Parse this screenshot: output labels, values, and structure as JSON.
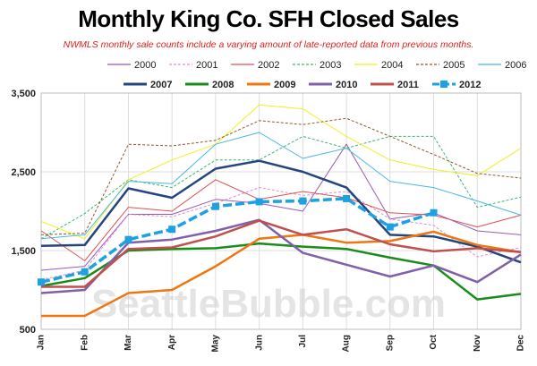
{
  "chart_data": {
    "type": "line",
    "title": "Monthly King Co. SFH Closed Sales",
    "subtitle": "NWMLS monthly sale counts include a varying amount of late-reported  data from previous months.",
    "watermark": "SeattleBubble.com",
    "categories": [
      "Jan",
      "Feb",
      "Mar",
      "Apr",
      "May",
      "Jun",
      "Jul",
      "Aug",
      "Sep",
      "Oct",
      "Nov",
      "Dec"
    ],
    "ylim": [
      500,
      3500
    ],
    "yticks": [
      "500",
      "1,500",
      "2,500",
      "3,500"
    ],
    "ytick_values": [
      500,
      1500,
      2500,
      3500
    ],
    "grid": true,
    "legend_position": "top",
    "series": [
      {
        "name": "2000",
        "color": "#9b59b6",
        "style": "thin",
        "values": [
          1250,
          1300,
          1960,
          1960,
          2150,
          2100,
          2000,
          2850,
          1900,
          1980,
          1750,
          1700
        ]
      },
      {
        "name": "2001",
        "color": "#d98fd9",
        "style": "thin-dash",
        "values": [
          1130,
          1250,
          1960,
          1930,
          2100,
          2300,
          2200,
          2250,
          1900,
          1820,
          1420,
          1540
        ]
      },
      {
        "name": "2002",
        "color": "#e05050",
        "style": "thin",
        "values": [
          1750,
          1370,
          2050,
          2000,
          2400,
          2150,
          2250,
          2170,
          1980,
          1950,
          1800,
          1950
        ]
      },
      {
        "name": "2003",
        "color": "#3cb371",
        "style": "thin-dash",
        "values": [
          1650,
          1970,
          2400,
          2300,
          2650,
          2650,
          2950,
          2800,
          2950,
          2950,
          2050,
          2180
        ]
      },
      {
        "name": "2004",
        "color": "#f0f020",
        "style": "thin",
        "values": [
          1870,
          1650,
          2400,
          2650,
          2850,
          3350,
          3300,
          2950,
          2650,
          2530,
          2450,
          2800
        ]
      },
      {
        "name": "2005",
        "color": "#8b5a2b",
        "style": "thin-dash",
        "values": [
          1700,
          1720,
          2850,
          2830,
          2900,
          3150,
          3100,
          3180,
          2950,
          2720,
          2480,
          2420
        ]
      },
      {
        "name": "2006",
        "color": "#48b8e0",
        "style": "thin",
        "values": [
          1650,
          1700,
          2380,
          2350,
          2850,
          3000,
          2670,
          2800,
          2380,
          2300,
          2130,
          1950
        ]
      },
      {
        "name": "2007",
        "color": "#24457e",
        "style": "bold",
        "values": [
          1560,
          1570,
          2290,
          2170,
          2540,
          2640,
          2500,
          2300,
          1700,
          1680,
          1550,
          1350
        ]
      },
      {
        "name": "2008",
        "color": "#1a8c1a",
        "style": "bold",
        "values": [
          1050,
          1150,
          1500,
          1520,
          1530,
          1590,
          1550,
          1520,
          1410,
          1310,
          880,
          950
        ]
      },
      {
        "name": "2009",
        "color": "#ee7711",
        "style": "bold",
        "values": [
          670,
          670,
          960,
          1000,
          1300,
          1650,
          1700,
          1600,
          1620,
          1740,
          1570,
          1480
        ]
      },
      {
        "name": "2010",
        "color": "#8060a8",
        "style": "bold",
        "values": [
          960,
          1000,
          1600,
          1640,
          1750,
          1890,
          1470,
          1320,
          1170,
          1310,
          1100,
          1450
        ]
      },
      {
        "name": "2011",
        "color": "#c0504d",
        "style": "bold",
        "values": [
          1040,
          1040,
          1520,
          1540,
          1680,
          1880,
          1700,
          1770,
          1580,
          1490,
          1530,
          1480
        ]
      },
      {
        "name": "2012",
        "color": "#1da1e2",
        "style": "bold-dash-marker",
        "values": [
          1100,
          1230,
          1640,
          1770,
          2060,
          2120,
          2130,
          2160,
          1800,
          1980,
          null,
          null
        ]
      }
    ]
  }
}
